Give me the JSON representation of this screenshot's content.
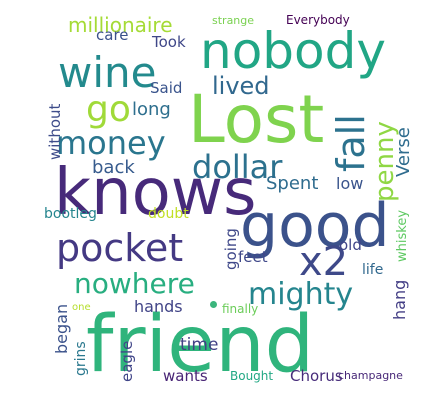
{
  "words": [
    {
      "id": "friend",
      "text": "friend",
      "color": "#2fb47c"
    },
    {
      "id": "knows",
      "text": "knows",
      "color": "#472a7a"
    },
    {
      "id": "lost",
      "text": "Lost",
      "color": "#7fd34e"
    },
    {
      "id": "good",
      "text": "good",
      "color": "#3b528b"
    },
    {
      "id": "nobody",
      "text": "nobody",
      "color": "#21a685"
    },
    {
      "id": "pocket",
      "text": "pocket",
      "color": "#443983"
    },
    {
      "id": "wine",
      "text": "wine",
      "color": "#238a8d"
    },
    {
      "id": "fall",
      "text": "fall",
      "color": "#2c728e"
    },
    {
      "id": "money",
      "text": "money",
      "color": "#2a768e"
    },
    {
      "id": "dollar",
      "text": "dollar",
      "color": "#2c718e"
    },
    {
      "id": "x2",
      "text": "x2",
      "color": "#3e4989"
    },
    {
      "id": "go",
      "text": "go",
      "color": "#a0da39"
    },
    {
      "id": "mighty",
      "text": "mighty",
      "color": "#25858e"
    },
    {
      "id": "nowhere",
      "text": "nowhere",
      "color": "#28ae80"
    },
    {
      "id": "penny",
      "text": "penny",
      "color": "#8fd744"
    },
    {
      "id": "lived",
      "text": "lived",
      "color": "#31688e"
    },
    {
      "id": "millionaire",
      "text": "millionaire",
      "color": "#a5db36"
    },
    {
      "id": "long",
      "text": "long",
      "color": "#2e6f8e"
    },
    {
      "id": "verse",
      "text": "Verse",
      "color": "#2f6c8e"
    },
    {
      "id": "back",
      "text": "back",
      "color": "#375b8d"
    },
    {
      "id": "spent",
      "text": "Spent",
      "color": "#2f6c8e"
    },
    {
      "id": "low",
      "text": "low",
      "color": "#3a548c"
    },
    {
      "id": "said",
      "text": "Said",
      "color": "#3a548c"
    },
    {
      "id": "took",
      "text": "Took",
      "color": "#3f4788"
    },
    {
      "id": "care",
      "text": "care",
      "color": "#3b518b"
    },
    {
      "id": "without",
      "text": "without",
      "color": "#3e4c8a"
    },
    {
      "id": "bootleg",
      "text": "bootleg",
      "color": "#25858e"
    },
    {
      "id": "doubt",
      "text": "doubt",
      "color": "#c2df23"
    },
    {
      "id": "going",
      "text": "going",
      "color": "#3f4889"
    },
    {
      "id": "feet",
      "text": "feet",
      "color": "#3f4889"
    },
    {
      "id": "old",
      "text": "old",
      "color": "#404588"
    },
    {
      "id": "whiskey",
      "text": "whiskey",
      "color": "#5ec962"
    },
    {
      "id": "life",
      "text": "life",
      "color": "#31688e"
    },
    {
      "id": "hang",
      "text": "hang",
      "color": "#433e85"
    },
    {
      "id": "hands",
      "text": "hands",
      "color": "#414487"
    },
    {
      "id": "began",
      "text": "began",
      "color": "#3b528b"
    },
    {
      "id": "finally",
      "text": "finally",
      "color": "#6ccd5a"
    },
    {
      "id": "one",
      "text": "one",
      "color": "#b5de2b"
    },
    {
      "id": "grins",
      "text": "grins",
      "color": "#2a788e"
    },
    {
      "id": "time",
      "text": "time",
      "color": "#424086"
    },
    {
      "id": "eagle",
      "text": "eagle",
      "color": "#404588"
    },
    {
      "id": "wants",
      "text": "wants",
      "color": "#482475"
    },
    {
      "id": "bought",
      "text": "Bought",
      "color": "#22a884"
    },
    {
      "id": "chorus",
      "text": "Chorus",
      "color": "#472c7a"
    },
    {
      "id": "champagne",
      "text": "champagne",
      "color": "#482878"
    },
    {
      "id": "strange",
      "text": "strange",
      "color": "#7ad151"
    },
    {
      "id": "everybody",
      "text": "Everybody",
      "color": "#440154"
    }
  ]
}
